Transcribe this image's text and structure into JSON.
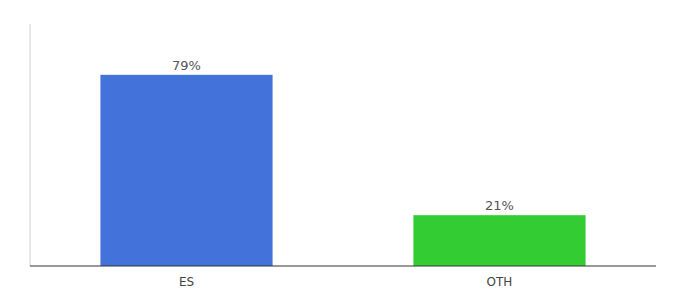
{
  "chart_data": {
    "type": "bar",
    "categories": [
      "ES",
      "OTH"
    ],
    "values": [
      79,
      21
    ],
    "value_labels": [
      "79%",
      "21%"
    ],
    "colors": [
      "#4472db",
      "#33cc33"
    ],
    "ylim": [
      0,
      100
    ],
    "data_labels": true,
    "tick_labels": "x"
  }
}
